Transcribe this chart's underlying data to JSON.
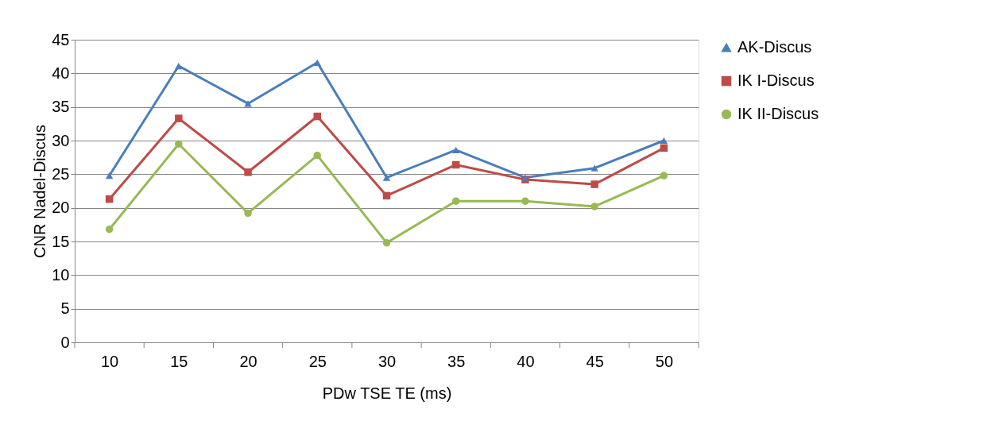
{
  "chart_data": {
    "type": "line",
    "xlabel": "PDw TSE TE (ms)",
    "ylabel": "CNR Nadel-Discus",
    "categories": [
      "10",
      "15",
      "20",
      "25",
      "30",
      "35",
      "40",
      "45",
      "50"
    ],
    "series": [
      {
        "name": "AK-Discus",
        "color": "#4a7ebb",
        "marker": "triangle",
        "values": [
          24.8,
          41.1,
          35.5,
          41.6,
          24.5,
          28.6,
          24.5,
          25.9,
          30.0
        ]
      },
      {
        "name": "IK I-Discus",
        "color": "#be4b48",
        "marker": "square",
        "values": [
          21.3,
          33.3,
          25.3,
          33.6,
          21.8,
          26.4,
          24.2,
          23.5,
          28.9
        ]
      },
      {
        "name": "IK II-Discus",
        "color": "#98b954",
        "marker": "circle",
        "values": [
          16.8,
          29.5,
          19.2,
          27.8,
          14.8,
          21.0,
          21.0,
          20.2,
          24.8
        ]
      }
    ],
    "ylim": [
      0,
      45
    ],
    "yticks": [
      0,
      5,
      10,
      15,
      20,
      25,
      30,
      35,
      40,
      45
    ],
    "grid": "y",
    "legend": "right",
    "line_style": "solid"
  }
}
